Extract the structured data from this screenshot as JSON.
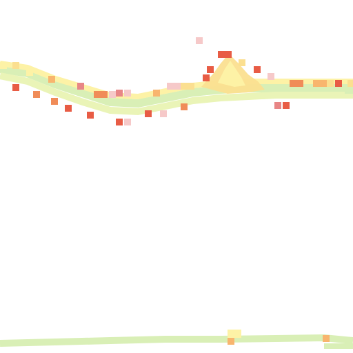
{
  "map": {
    "layer": "heatmap-tile",
    "legend_colors": {
      "low": "#d9efb6",
      "low_mid": "#eaf4b7",
      "mid": "#fdf2a6",
      "mid_high": "#fbdf90",
      "high": "#f8b56e",
      "higher": "#f08c58",
      "highest": "#e85c45",
      "sparse": "#f6c9c9"
    }
  }
}
